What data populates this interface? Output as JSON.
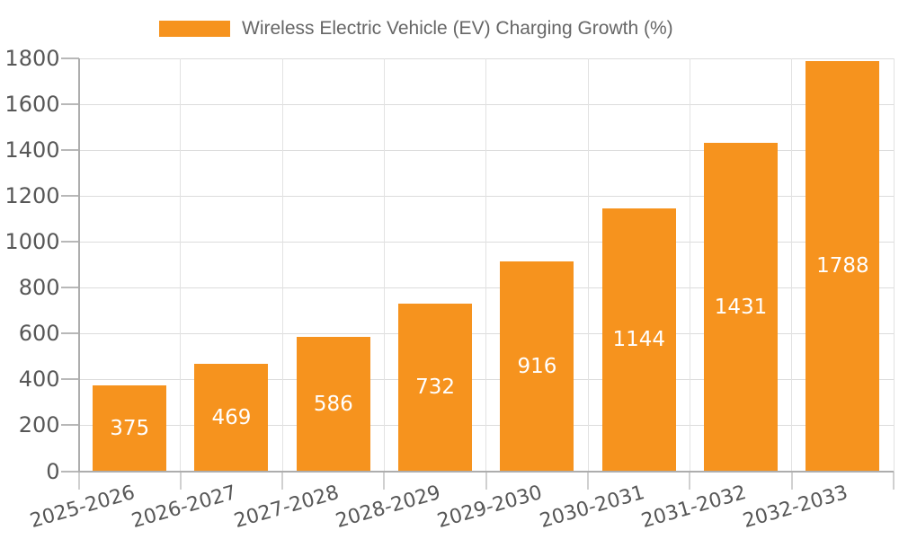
{
  "legend": {
    "label": "Wireless Electric Vehicle (EV) Charging Growth (%)",
    "swatch_color": "#F6931E",
    "position": "top"
  },
  "chart_data": {
    "type": "bar",
    "title": "Wireless Electric Vehicle (EV) Charging Growth (%)",
    "categories": [
      "2025-2026",
      "2026-2027",
      "2027-2028",
      "2028-2029",
      "2029-2030",
      "2030-2031",
      "2031-2032",
      "2032-2033"
    ],
    "values": [
      375,
      469,
      586,
      732,
      916,
      1144,
      1431,
      1788
    ],
    "value_labels_shown": true,
    "xlabel": "",
    "ylabel": "",
    "ylim": [
      0,
      1800
    ],
    "ytick_step": 200,
    "yticks": [
      0,
      200,
      400,
      600,
      800,
      1000,
      1200,
      1400,
      1600,
      1800
    ],
    "grid": true,
    "xlabel_rotation_deg": -16,
    "legend_position": "top",
    "bar_color": "#F6931E",
    "value_label_color": "#FFFFFF"
  },
  "colors": {
    "bar": "#F6931E",
    "legend_text": "#666666",
    "tick_text": "#575757",
    "axis_line": "#ADADAD",
    "gridline_h": "#DCDCDC",
    "gridline_v": "#E2E2E2",
    "background": "#FFFFFF"
  }
}
